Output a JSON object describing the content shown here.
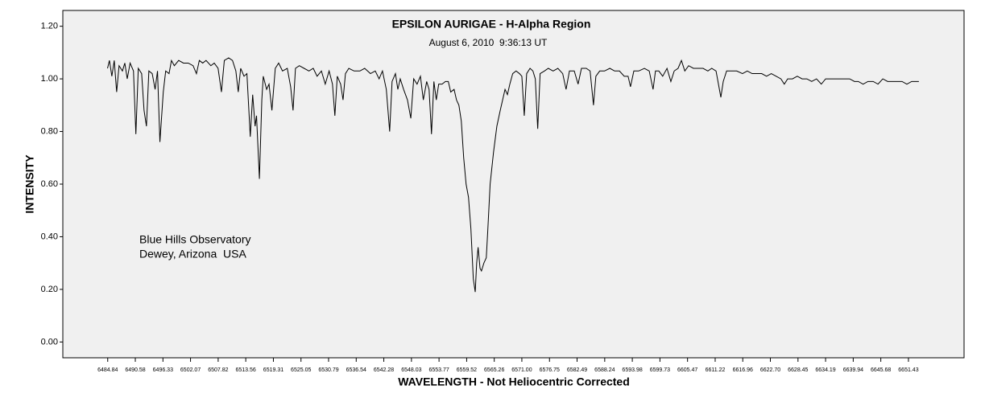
{
  "chart_data": {
    "type": "line",
    "title": "EPSILON AURIGAE - H-Alpha Region",
    "subtitle": "August 6, 2010  9:36:13 UT",
    "annotations": [
      "Blue Hills Observatory",
      "Dewey, Arizona  USA"
    ],
    "x_label": "WAVELENGTH - Not Heliocentric Corrected",
    "y_label": "INTENSITY",
    "color": "#000000",
    "background": "#f0f0f0",
    "grid": false,
    "xlim": [
      6475.5,
      6663.0
    ],
    "ylim": [
      -0.06,
      1.26
    ],
    "yticks": [
      {
        "value": 0,
        "label": "0.00"
      },
      {
        "value": 0.2,
        "label": "0.20"
      },
      {
        "value": 0.4,
        "label": "0.40"
      },
      {
        "value": 0.6,
        "label": "0.60"
      },
      {
        "value": 0.8,
        "label": "0.80"
      },
      {
        "value": 1,
        "label": "1.00"
      },
      {
        "value": 1.2,
        "label": "1.20"
      }
    ],
    "xticks": [
      6484.84,
      6490.58,
      6496.33,
      6502.07,
      6507.82,
      6513.56,
      6519.31,
      6525.05,
      6530.79,
      6536.54,
      6542.28,
      6548.03,
      6553.77,
      6559.52,
      6565.26,
      {
        "value": 6571,
        "label": "6571.00"
      },
      6576.75,
      6582.49,
      6588.24,
      6593.98,
      6599.73,
      6605.47,
      6611.22,
      6616.96,
      {
        "value": 6622.7,
        "label": "6622.70"
      },
      6628.45,
      6634.19,
      6639.94,
      6645.68,
      6651.43
    ],
    "x": [
      6484.8,
      6485.2,
      6485.7,
      6486.2,
      6486.7,
      6487.2,
      6487.9,
      6488.4,
      6488.9,
      6489.5,
      6490.2,
      6490.7,
      6491.2,
      6491.9,
      6492.4,
      6492.9,
      6493.4,
      6494.1,
      6494.7,
      6495.2,
      6495.7,
      6496.4,
      6496.9,
      6497.6,
      6498.1,
      6498.7,
      6499.6,
      6500.6,
      6501.6,
      6502.6,
      6503.3,
      6503.9,
      6504.6,
      6505.3,
      6506.3,
      6507.0,
      6507.8,
      6508.5,
      6509.1,
      6510.0,
      6510.8,
      6511.5,
      6512.0,
      6512.5,
      6513.2,
      6513.8,
      6514.5,
      6515.0,
      6515.5,
      6515.8,
      6516.4,
      6516.9,
      6517.2,
      6517.9,
      6518.4,
      6519.0,
      6519.7,
      6520.4,
      6521.2,
      6522.2,
      6522.9,
      6523.4,
      6523.9,
      6524.7,
      6525.7,
      6526.7,
      6527.6,
      6528.4,
      6529.3,
      6530.1,
      6530.9,
      6531.6,
      6532.1,
      6532.6,
      6533.3,
      6533.8,
      6534.3,
      6535.0,
      6536.1,
      6537.3,
      6538.3,
      6539.5,
      6540.5,
      6541.3,
      6542.0,
      6542.8,
      6543.5,
      6544.0,
      6544.7,
      6545.2,
      6545.7,
      6546.4,
      6547.2,
      6547.9,
      6548.5,
      6549.2,
      6549.9,
      6550.5,
      6551.2,
      6551.7,
      6552.2,
      6552.7,
      6553.2,
      6553.7,
      6554.4,
      6555.1,
      6555.7,
      6556.2,
      6556.9,
      6557.4,
      6557.9,
      6558.4,
      6558.9,
      6559.4,
      6559.9,
      6560.4,
      6560.9,
      6561.3,
      6561.6,
      6561.9,
      6562.3,
      6562.6,
      6563.1,
      6563.6,
      6563.9,
      6564.4,
      6565.1,
      6565.8,
      6566.5,
      6567.0,
      6567.5,
      6568.0,
      6568.5,
      6569.1,
      6569.8,
      6570.5,
      6571.0,
      6571.5,
      6572.0,
      6572.7,
      6573.3,
      6573.8,
      6574.3,
      6574.8,
      6575.7,
      6576.5,
      6577.5,
      6578.5,
      6579.5,
      6580.2,
      6580.9,
      6581.9,
      6582.7,
      6583.4,
      6584.4,
      6585.2,
      6585.9,
      6586.4,
      6587.2,
      6588.2,
      6589.3,
      6590.3,
      6591.3,
      6592.3,
      6593.1,
      6593.6,
      6594.3,
      6595.3,
      6596.5,
      6597.5,
      6598.3,
      6598.8,
      6599.5,
      6600.3,
      6601.2,
      6602.0,
      6602.7,
      6603.5,
      6604.2,
      6604.9,
      6605.7,
      6606.7,
      6607.7,
      6608.7,
      6609.7,
      6610.5,
      6611.4,
      6611.9,
      6612.4,
      6612.9,
      6613.6,
      6614.6,
      6615.7,
      6616.9,
      6617.9,
      6618.9,
      6619.9,
      6620.9,
      6621.9,
      6622.9,
      6623.9,
      6624.9,
      6625.6,
      6626.3,
      6627.3,
      6628.3,
      6629.3,
      6630.3,
      6631.3,
      6632.3,
      6633.3,
      6634.2,
      6635.2,
      6636.2,
      6637.2,
      6638.2,
      6639.2,
      6640.2,
      6641.0,
      6642.0,
      6643.0,
      6644.1,
      6645.1,
      6646.1,
      6647.1,
      6648.1,
      6649.1,
      6650.1,
      6651.1,
      6652.1,
      6653.1,
      6653.6
    ],
    "values": [
      1.04,
      1.07,
      1.01,
      1.07,
      0.95,
      1.05,
      1.03,
      1.06,
      1.0,
      1.06,
      1.03,
      0.79,
      1.04,
      1.02,
      0.88,
      0.82,
      1.03,
      1.02,
      0.96,
      1.03,
      0.76,
      0.95,
      1.03,
      1.02,
      1.07,
      1.05,
      1.07,
      1.06,
      1.06,
      1.05,
      1.02,
      1.07,
      1.06,
      1.07,
      1.05,
      1.06,
      1.04,
      0.95,
      1.07,
      1.08,
      1.07,
      1.03,
      0.95,
      1.04,
      1.01,
      1.02,
      0.78,
      0.94,
      0.82,
      0.86,
      0.62,
      0.92,
      1.01,
      0.96,
      0.98,
      0.88,
      1.04,
      1.06,
      1.03,
      1.04,
      0.97,
      0.88,
      1.04,
      1.05,
      1.04,
      1.03,
      1.04,
      1.01,
      1.03,
      0.98,
      1.03,
      0.98,
      0.86,
      1.01,
      0.98,
      0.92,
      1.02,
      1.04,
      1.03,
      1.03,
      1.04,
      1.02,
      1.03,
      1.0,
      1.03,
      0.96,
      0.8,
      0.99,
      1.02,
      0.96,
      1.0,
      0.96,
      0.92,
      0.85,
      1.0,
      0.98,
      1.01,
      0.92,
      0.99,
      0.96,
      0.79,
      0.99,
      0.92,
      0.98,
      0.98,
      0.99,
      0.99,
      0.95,
      0.96,
      0.92,
      0.9,
      0.84,
      0.7,
      0.6,
      0.55,
      0.43,
      0.24,
      0.19,
      0.3,
      0.36,
      0.28,
      0.27,
      0.3,
      0.32,
      0.42,
      0.6,
      0.72,
      0.82,
      0.88,
      0.92,
      0.96,
      0.94,
      0.98,
      1.02,
      1.03,
      1.02,
      1.01,
      0.86,
      1.02,
      1.04,
      1.03,
      1.0,
      0.81,
      1.02,
      1.03,
      1.04,
      1.03,
      1.04,
      1.02,
      0.96,
      1.03,
      1.03,
      0.98,
      1.04,
      1.04,
      1.03,
      0.9,
      1.01,
      1.03,
      1.03,
      1.04,
      1.03,
      1.03,
      1.01,
      1.01,
      0.97,
      1.03,
      1.03,
      1.04,
      1.03,
      0.96,
      1.03,
      1.03,
      1.01,
      1.04,
      0.99,
      1.03,
      1.04,
      1.07,
      1.03,
      1.05,
      1.04,
      1.04,
      1.04,
      1.03,
      1.04,
      1.03,
      0.98,
      0.93,
      0.99,
      1.03,
      1.03,
      1.03,
      1.02,
      1.03,
      1.02,
      1.02,
      1.02,
      1.01,
      1.02,
      1.01,
      1.0,
      0.98,
      1.0,
      1.0,
      1.01,
      1.0,
      1.0,
      0.99,
      1.0,
      0.98,
      1.0,
      1.0,
      1.0,
      1.0,
      1.0,
      1.0,
      0.99,
      0.99,
      0.98,
      0.99,
      0.99,
      0.98,
      1.0,
      0.99,
      0.99,
      0.99,
      0.99,
      0.98,
      0.99,
      0.99,
      0.99
    ]
  }
}
